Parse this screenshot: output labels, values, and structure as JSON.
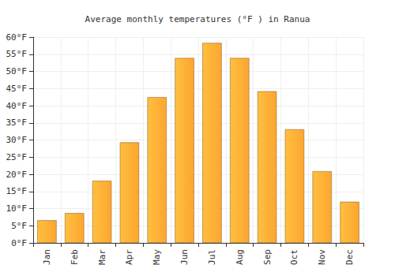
{
  "chart_data": {
    "type": "bar",
    "title": "Average monthly temperatures (°F ) in Ranua",
    "categories": [
      "Jan",
      "Feb",
      "Mar",
      "Apr",
      "May",
      "Jun",
      "Jul",
      "Aug",
      "Sep",
      "Oct",
      "Nov",
      "Dec"
    ],
    "values": [
      6.6,
      8.7,
      18.1,
      29.3,
      42.5,
      53.9,
      58.3,
      53.9,
      44.2,
      33.1,
      20.9,
      12.0
    ],
    "color": "#fca62f",
    "ylim": [
      0,
      60
    ],
    "yticks": [
      {
        "value": 0,
        "label": "0°F"
      },
      {
        "value": 5,
        "label": "5°F"
      },
      {
        "value": 10,
        "label": "10°F"
      },
      {
        "value": 15,
        "label": "15°F"
      },
      {
        "value": 20,
        "label": "20°F"
      },
      {
        "value": 25,
        "label": "25°F"
      },
      {
        "value": 30,
        "label": "30°F"
      },
      {
        "value": 35,
        "label": "35°F"
      },
      {
        "value": 40,
        "label": "40°F"
      },
      {
        "value": 45,
        "label": "45°F"
      },
      {
        "value": 50,
        "label": "50°F"
      },
      {
        "value": 55,
        "label": "55°F"
      },
      {
        "value": 60,
        "label": "60°F"
      }
    ],
    "grid": true
  }
}
